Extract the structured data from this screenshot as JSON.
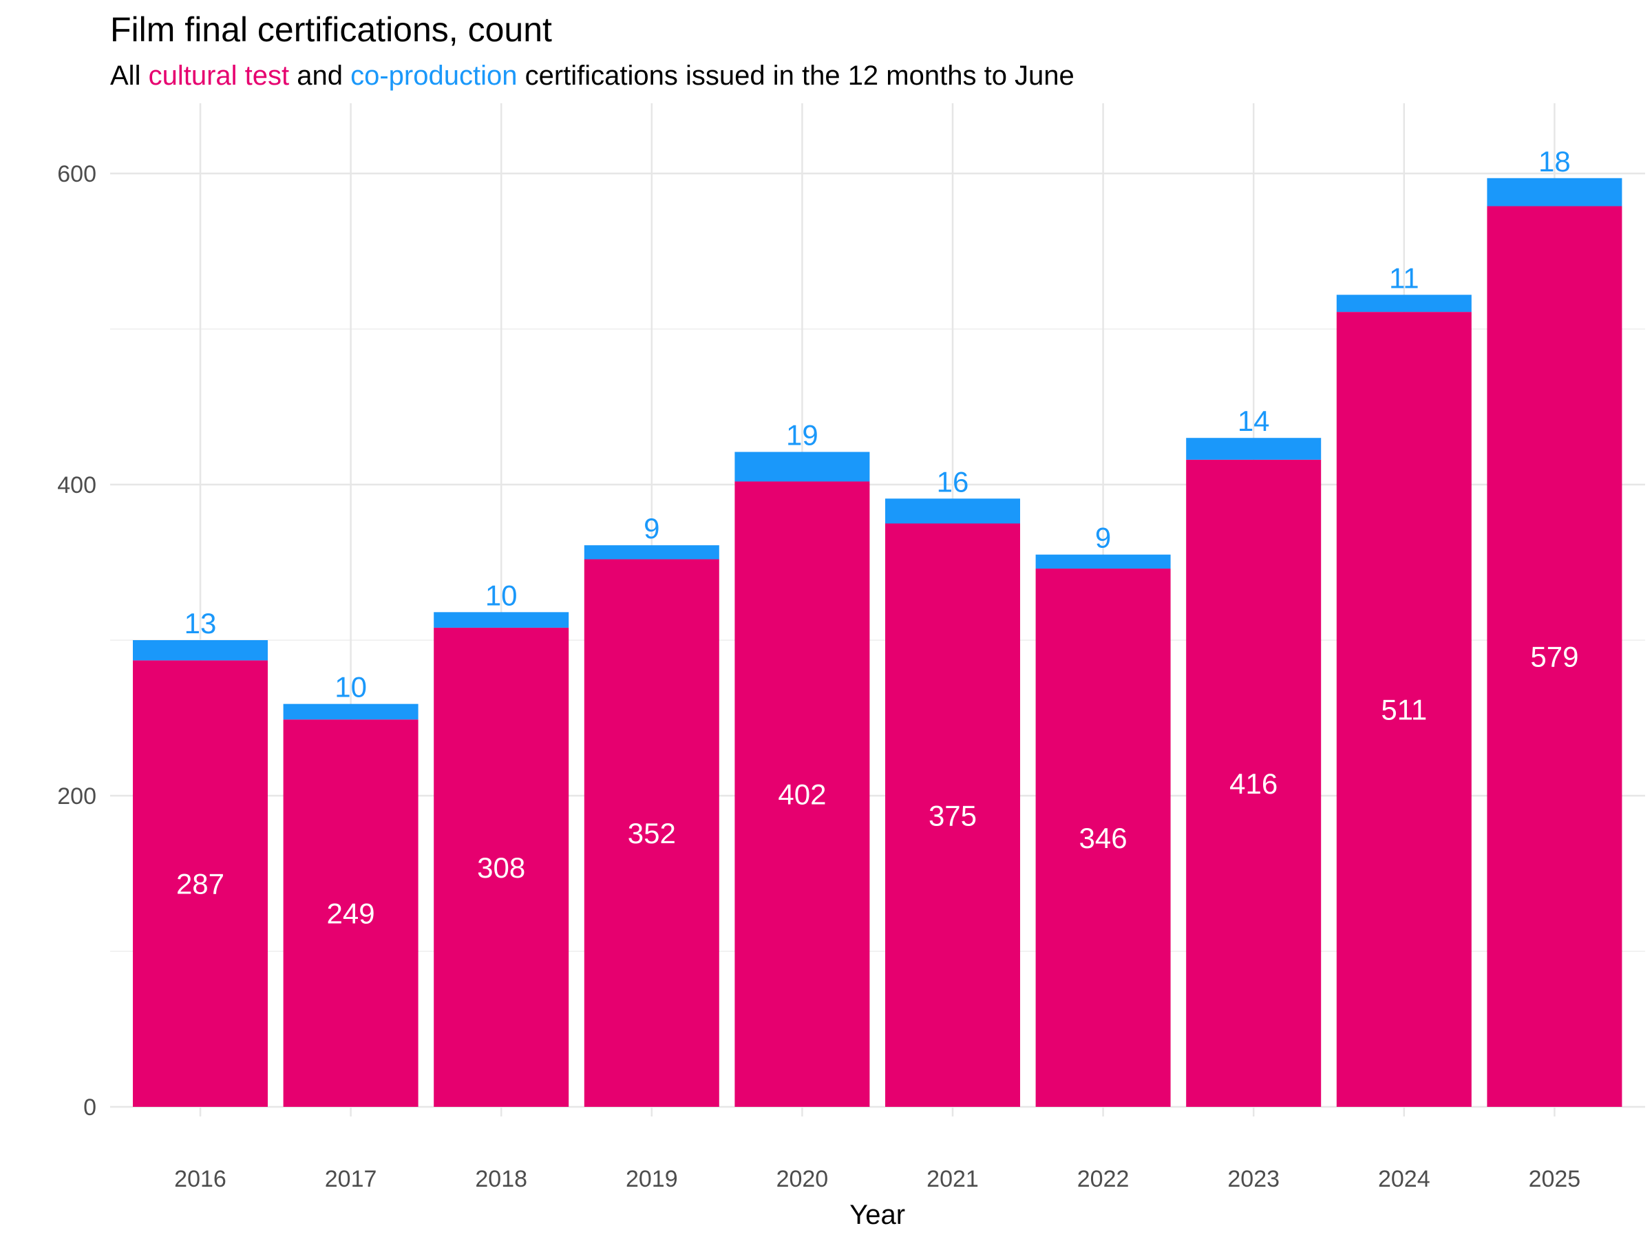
{
  "chart_data": {
    "type": "bar",
    "stacked": true,
    "title": "Film final certifications, count",
    "subtitle_parts": [
      "All ",
      "cultural test",
      " and ",
      "co-production",
      " certifications issued in the 12 months to June"
    ],
    "xlabel": "Year",
    "ylabel": "",
    "categories": [
      "2016",
      "2017",
      "2018",
      "2019",
      "2020",
      "2021",
      "2022",
      "2023",
      "2024",
      "2025"
    ],
    "series": [
      {
        "name": "cultural test",
        "color": "#e6006f",
        "values": [
          287,
          249,
          308,
          352,
          402,
          375,
          346,
          416,
          511,
          579
        ]
      },
      {
        "name": "co-production",
        "color": "#1a98fa",
        "values": [
          13,
          10,
          10,
          9,
          19,
          16,
          9,
          14,
          11,
          18
        ]
      }
    ],
    "yticks": [
      0,
      200,
      400,
      600
    ],
    "ylim": [
      0,
      640
    ],
    "grid": true,
    "legend": "none (colored words in subtitle)"
  }
}
